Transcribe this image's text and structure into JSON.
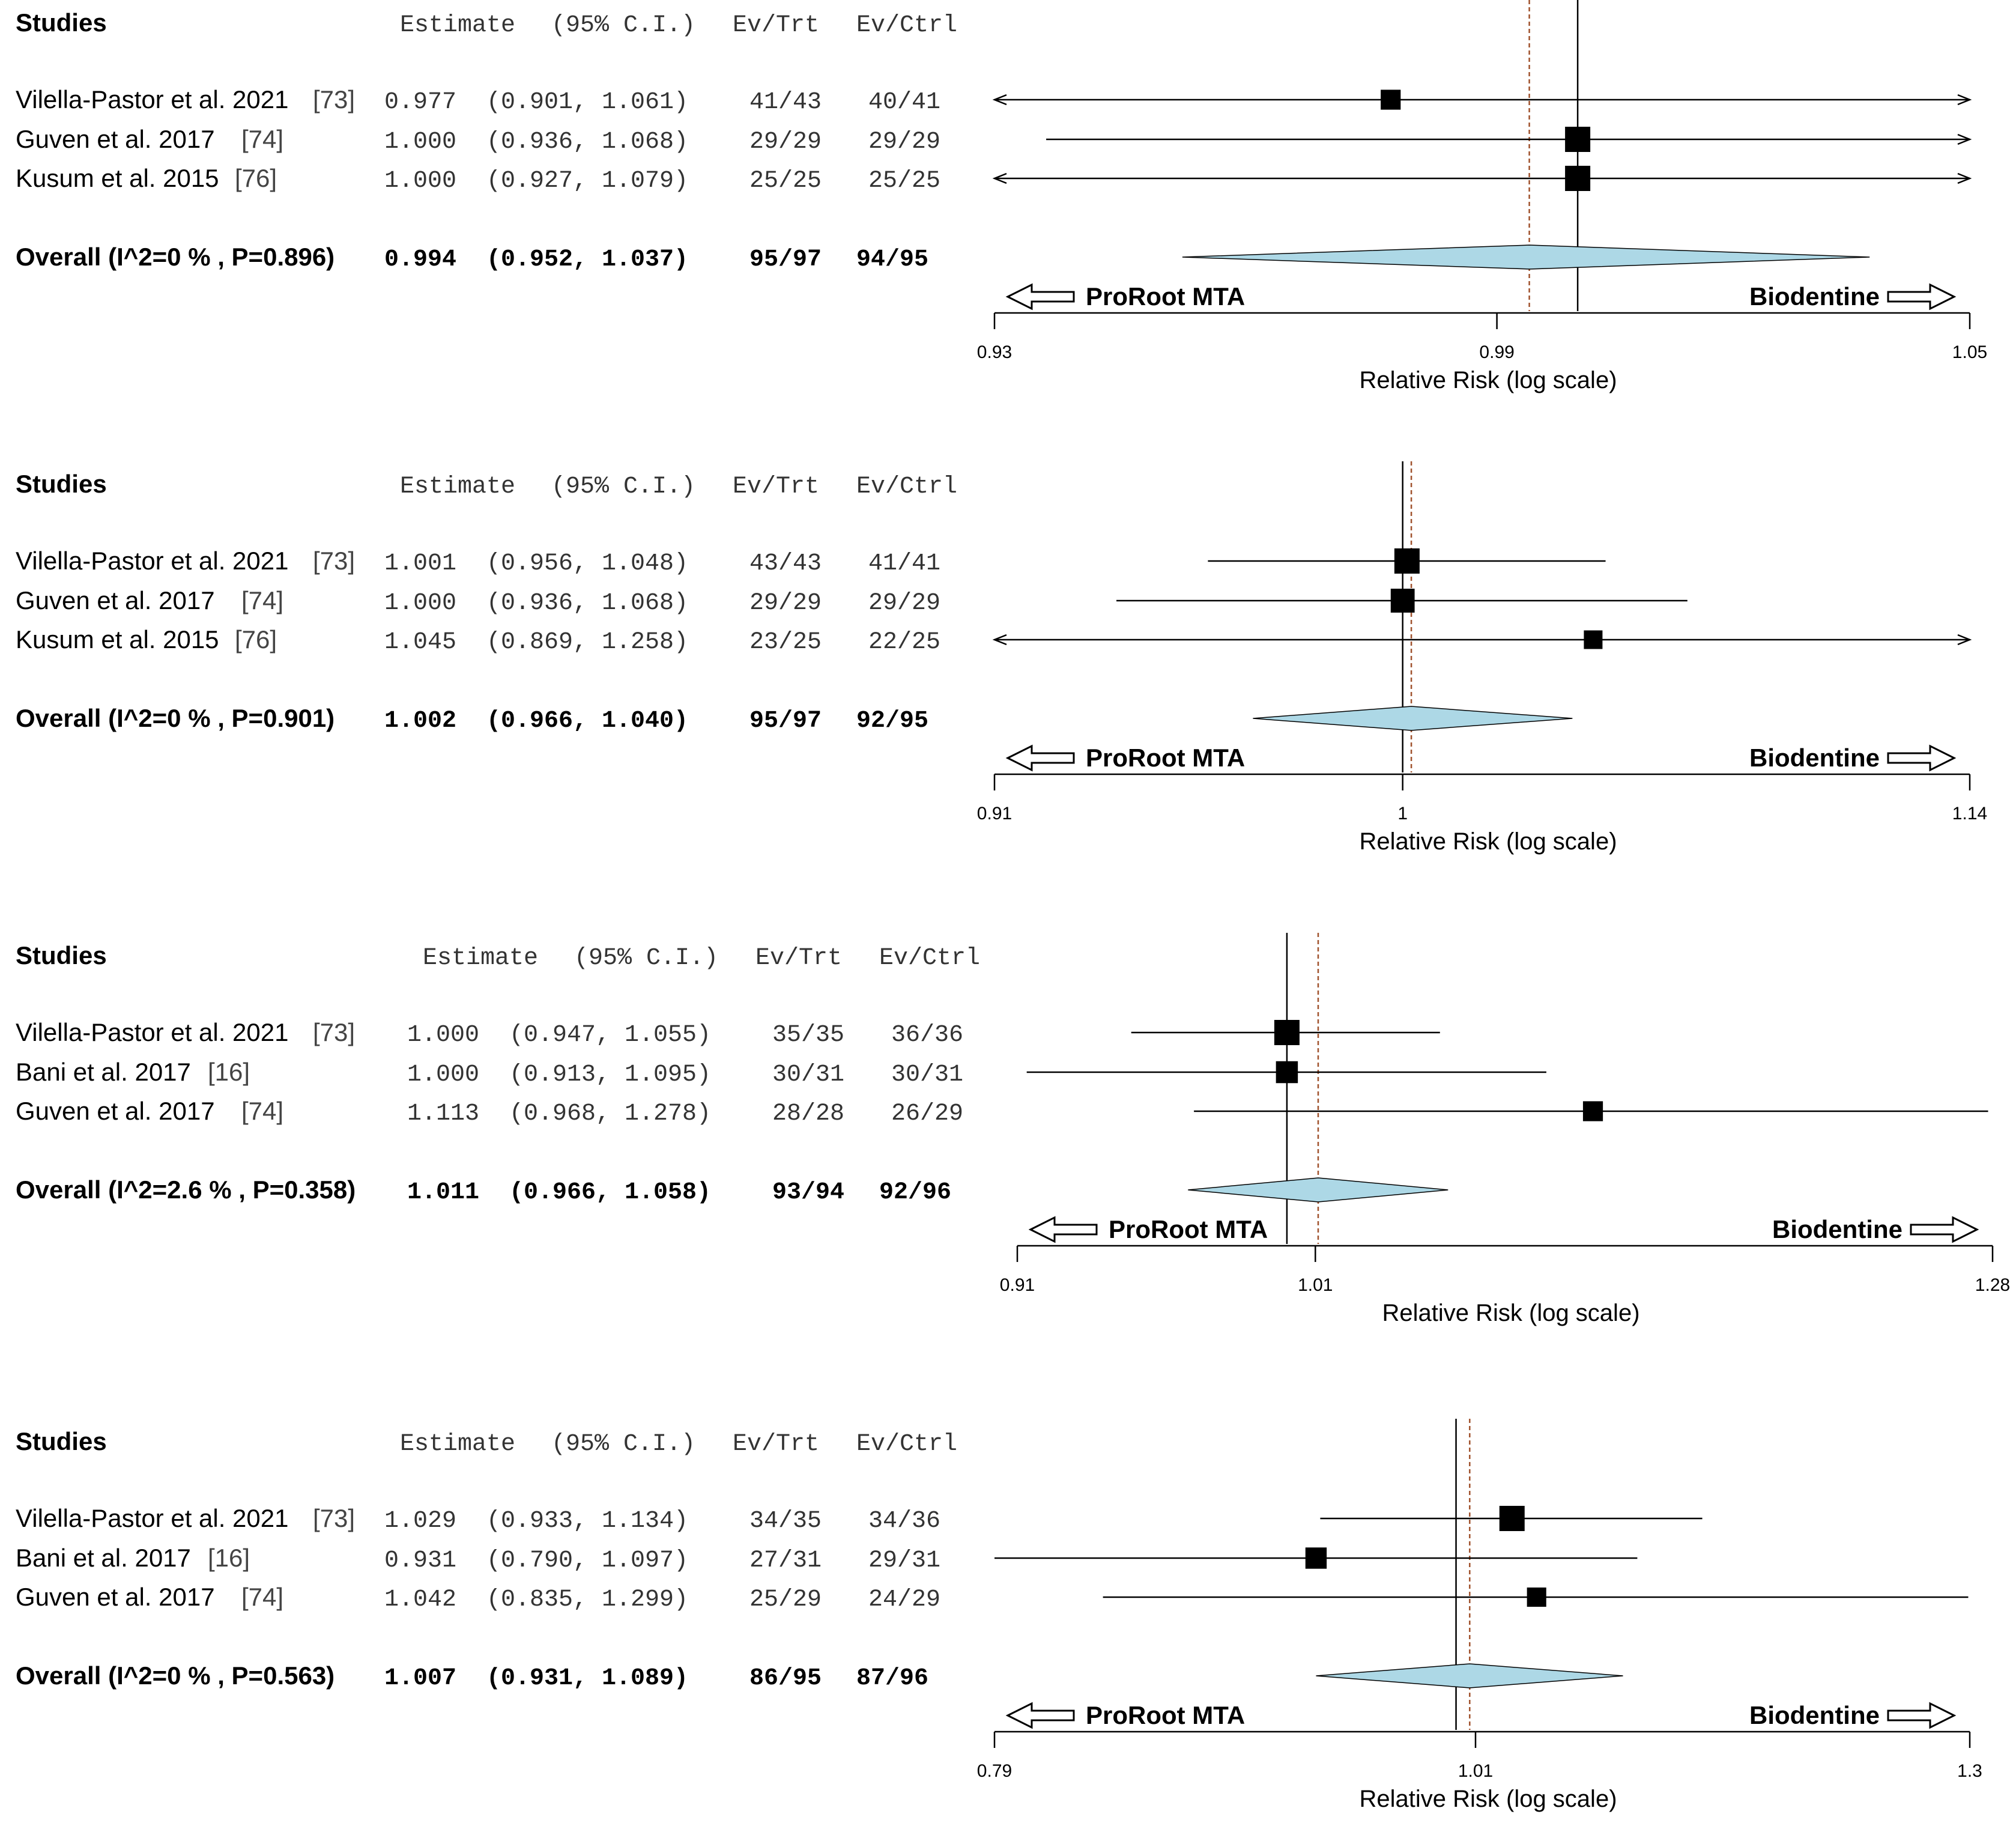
{
  "chart_data": [
    {
      "type": "forest",
      "headers": {
        "studies": "Studies",
        "estimate": "Estimate",
        "ci": "(95% C.I.)",
        "ev_trt": "Ev/Trt",
        "ev_ctrl": "Ev/Ctrl"
      },
      "studies": [
        {
          "label": "Vilella-Pastor et al. 2021",
          "ref": "[73]",
          "est": "0.977",
          "ci": "(0.901, 1.061)",
          "ev_trt": "41/43",
          "ev_ctrl": "40/41",
          "rr": 0.977,
          "lo": 0.901,
          "hi": 1.061
        },
        {
          "label": "Guven et al. 2017",
          "ref": "[74]",
          "est": "1.000",
          "ci": "(0.936, 1.068)",
          "ev_trt": "29/29",
          "ev_ctrl": "29/29",
          "rr": 1.0,
          "lo": 0.936,
          "hi": 1.068
        },
        {
          "label": "Kusum et al. 2015",
          "ref": "[76]",
          "est": "1.000",
          "ci": "(0.927, 1.079)",
          "ev_trt": "25/25",
          "ev_ctrl": "25/25",
          "rr": 1.0,
          "lo": 0.927,
          "hi": 1.079
        }
      ],
      "weights": [
        0.6,
        1.0,
        1.0
      ],
      "overall": {
        "label": "Overall (I^2=0 % , P=0.896)",
        "est": "0.994",
        "ci": "(0.952, 1.037)",
        "ev_trt": "95/97",
        "ev_ctrl": "94/95",
        "rr": 0.994,
        "lo": 0.952,
        "hi": 1.037
      },
      "axis": {
        "min": 0.93,
        "max": 1.05,
        "mid": 0.99,
        "ticks": [
          "0.93",
          "0.99",
          "1.05"
        ],
        "label": "Relative Risk (log scale)"
      },
      "left_label": "ProRoot MTA",
      "right_label": "Biodentine"
    },
    {
      "type": "forest",
      "headers": {
        "studies": "Studies",
        "estimate": "Estimate",
        "ci": "(95% C.I.)",
        "ev_trt": "Ev/Trt",
        "ev_ctrl": "Ev/Ctrl"
      },
      "studies": [
        {
          "label": "Vilella-Pastor et al. 2021",
          "ref": "[73]",
          "est": "1.001",
          "ci": "(0.956, 1.048)",
          "ev_trt": "43/43",
          "ev_ctrl": "41/41",
          "rr": 1.001,
          "lo": 0.956,
          "hi": 1.048
        },
        {
          "label": "Guven et al. 2017",
          "ref": "[74]",
          "est": "1.000",
          "ci": "(0.936, 1.068)",
          "ev_trt": "29/29",
          "ev_ctrl": "29/29",
          "rr": 1.0,
          "lo": 0.936,
          "hi": 1.068
        },
        {
          "label": "Kusum et al. 2015",
          "ref": "[76]",
          "est": "1.045",
          "ci": "(0.869, 1.258)",
          "ev_trt": "23/25",
          "ev_ctrl": "22/25",
          "rr": 1.045,
          "lo": 0.869,
          "hi": 1.258
        }
      ],
      "weights": [
        1.0,
        0.9,
        0.5
      ],
      "overall": {
        "label": "Overall (I^2=0 % , P=0.901)",
        "est": "1.002",
        "ci": "(0.966, 1.040)",
        "ev_trt": "95/97",
        "ev_ctrl": "92/95",
        "rr": 1.002,
        "lo": 0.966,
        "hi": 1.04
      },
      "axis": {
        "min": 0.91,
        "max": 1.14,
        "mid": 1.0,
        "ticks": [
          "0.91",
          "1",
          "1.14"
        ],
        "label": "Relative Risk (log scale)"
      },
      "left_label": "ProRoot MTA",
      "right_label": "Biodentine"
    },
    {
      "type": "forest",
      "headers": {
        "studies": "Studies",
        "estimate": "Estimate",
        "ci": "(95% C.I.)",
        "ev_trt": "Ev/Trt",
        "ev_ctrl": "Ev/Ctrl"
      },
      "studies": [
        {
          "label": "Vilella-Pastor et al. 2021",
          "ref": "[73]",
          "est": "1.000",
          "ci": "(0.947, 1.055)",
          "ev_trt": "35/35",
          "ev_ctrl": "36/36",
          "rr": 1.0,
          "lo": 0.947,
          "hi": 1.055
        },
        {
          "label": "Bani et al. 2017",
          "ref": "[16]",
          "est": "1.000",
          "ci": "(0.913, 1.095)",
          "ev_trt": "30/31",
          "ev_ctrl": "30/31",
          "rr": 1.0,
          "lo": 0.913,
          "hi": 1.095
        },
        {
          "label": "Guven et al. 2017",
          "ref": "[74]",
          "est": "1.113",
          "ci": "(0.968, 1.278)",
          "ev_trt": "28/28",
          "ev_ctrl": "26/29",
          "rr": 1.113,
          "lo": 0.968,
          "hi": 1.278
        }
      ],
      "weights": [
        1.0,
        0.75,
        0.6
      ],
      "overall": {
        "label": "Overall (I^2=2.6 % , P=0.358)",
        "est": "1.011",
        "ci": "(0.966, 1.058)",
        "ev_trt": "93/94",
        "ev_ctrl": "92/96",
        "rr": 1.011,
        "lo": 0.966,
        "hi": 1.058
      },
      "axis": {
        "min": 0.91,
        "max": 1.28,
        "mid": 1.01,
        "ticks": [
          "0.91",
          "1.01",
          "1.28"
        ],
        "label": "Relative Risk (log scale)"
      },
      "left_label": "ProRoot MTA",
      "right_label": "Biodentine"
    },
    {
      "type": "forest",
      "headers": {
        "studies": "Studies",
        "estimate": "Estimate",
        "ci": "(95% C.I.)",
        "ev_trt": "Ev/Trt",
        "ev_ctrl": "Ev/Ctrl"
      },
      "studies": [
        {
          "label": "Vilella-Pastor et al. 2021",
          "ref": "[73]",
          "est": "1.029",
          "ci": "(0.933, 1.134)",
          "ev_trt": "34/35",
          "ev_ctrl": "34/36",
          "rr": 1.029,
          "lo": 0.933,
          "hi": 1.134
        },
        {
          "label": "Bani et al. 2017",
          "ref": "[16]",
          "est": "0.931",
          "ci": "(0.790, 1.097)",
          "ev_trt": "27/31",
          "ev_ctrl": "29/31",
          "rr": 0.931,
          "lo": 0.79,
          "hi": 1.097
        },
        {
          "label": "Guven et al. 2017",
          "ref": "[74]",
          "est": "1.042",
          "ci": "(0.835, 1.299)",
          "ev_trt": "25/29",
          "ev_ctrl": "24/29",
          "rr": 1.042,
          "lo": 0.835,
          "hi": 1.299
        }
      ],
      "weights": [
        1.0,
        0.7,
        0.55
      ],
      "overall": {
        "label": "Overall (I^2=0 % , P=0.563)",
        "est": "1.007",
        "ci": "(0.931, 1.089)",
        "ev_trt": "86/95",
        "ev_ctrl": "87/96",
        "rr": 1.007,
        "lo": 0.931,
        "hi": 1.089
      },
      "axis": {
        "min": 0.79,
        "max": 1.3,
        "mid": 1.01,
        "ticks": [
          "0.79",
          "1.01",
          "1.3"
        ],
        "label": "Relative Risk (log scale)"
      },
      "left_label": "ProRoot MTA",
      "right_label": "Biodentine"
    }
  ],
  "colors": {
    "diamond": "#add8e6",
    "marker": "#000000",
    "dashed": "#a0522d",
    "text": "#000000",
    "muted": "#333333"
  }
}
